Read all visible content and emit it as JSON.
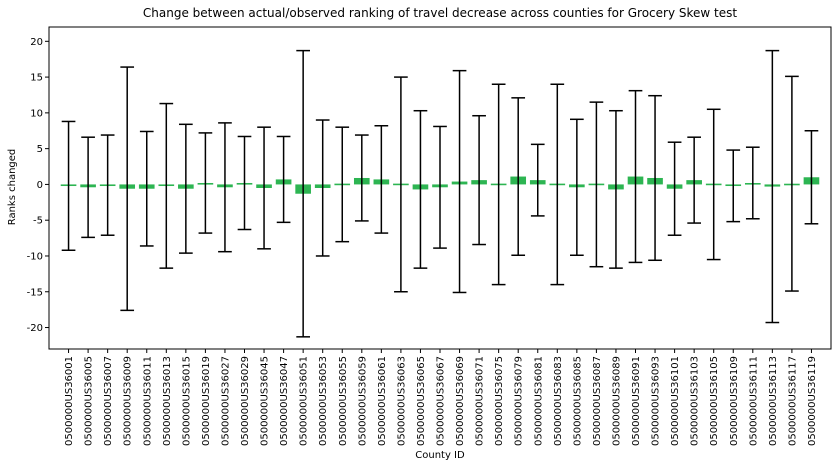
{
  "chart_data": {
    "type": "bar",
    "title": "Change between actual/observed ranking of travel decrease across counties for Grocery Skew test",
    "xlabel": "County ID",
    "ylabel": "Ranks changed",
    "ylim": [
      -23,
      22
    ],
    "yticks": [
      -20,
      -15,
      -10,
      -5,
      0,
      5,
      10,
      15,
      20
    ],
    "grid": false,
    "legend": "none",
    "colors": {
      "bar": "#2db552",
      "errorbar": "#000000",
      "axis": "#000000",
      "background": "#ffffff"
    },
    "categories": [
      "0500000US36001",
      "0500000US36005",
      "0500000US36007",
      "0500000US36009",
      "0500000US36011",
      "0500000US36013",
      "0500000US36015",
      "0500000US36019",
      "0500000US36027",
      "0500000US36029",
      "0500000US36045",
      "0500000US36047",
      "0500000US36051",
      "0500000US36053",
      "0500000US36055",
      "0500000US36059",
      "0500000US36061",
      "0500000US36063",
      "0500000US36065",
      "0500000US36067",
      "0500000US36069",
      "0500000US36071",
      "0500000US36075",
      "0500000US36079",
      "0500000US36081",
      "0500000US36083",
      "0500000US36085",
      "0500000US36087",
      "0500000US36089",
      "0500000US36091",
      "0500000US36093",
      "0500000US36101",
      "0500000US36103",
      "0500000US36105",
      "0500000US36109",
      "0500000US36111",
      "0500000US36113",
      "0500000US36117",
      "0500000US36119"
    ],
    "values": [
      -0.2,
      -0.4,
      -0.1,
      -0.6,
      -0.6,
      -0.2,
      -0.6,
      0.2,
      -0.4,
      0.2,
      -0.5,
      0.7,
      -1.3,
      -0.5,
      0.0,
      0.9,
      0.7,
      0.0,
      -0.7,
      -0.4,
      0.4,
      0.6,
      0.0,
      1.1,
      0.6,
      0.0,
      -0.4,
      0.0,
      -0.7,
      1.1,
      0.9,
      -0.6,
      0.6,
      0.0,
      -0.2,
      0.2,
      -0.3,
      0.1,
      1.0
    ],
    "errors": [
      9.0,
      7.0,
      7.0,
      17.0,
      8.0,
      11.5,
      9.0,
      7.0,
      9.0,
      6.5,
      8.5,
      6.0,
      20.0,
      9.5,
      8.0,
      6.0,
      7.5,
      15.0,
      11.0,
      8.5,
      15.5,
      9.0,
      14.0,
      11.0,
      5.0,
      14.0,
      9.5,
      11.5,
      11.0,
      12.0,
      11.5,
      6.5,
      6.0,
      10.5,
      5.0,
      5.0,
      19.0,
      15.0,
      6.5
    ]
  }
}
